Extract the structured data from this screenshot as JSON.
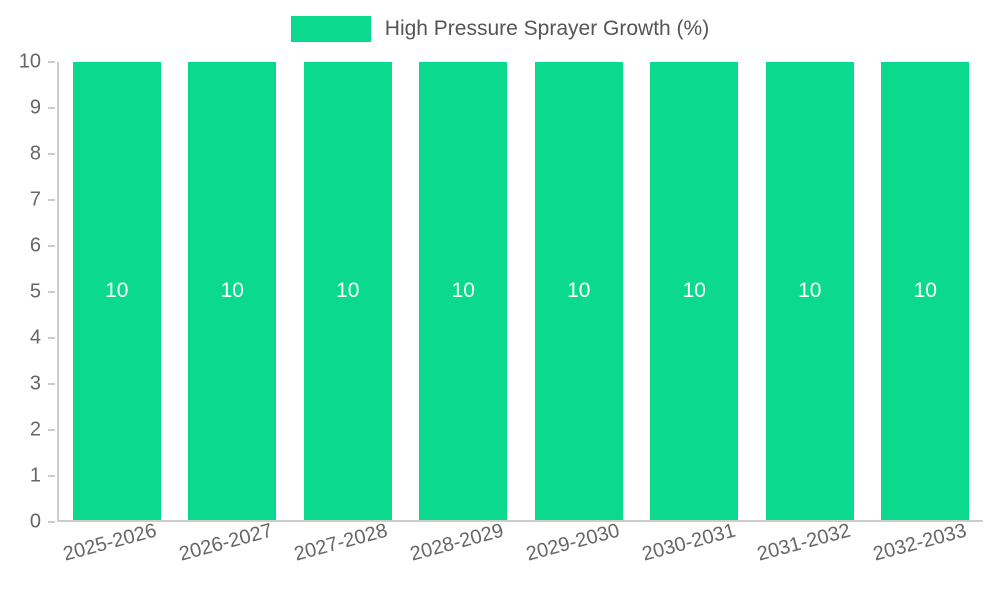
{
  "chart_data": {
    "type": "bar",
    "title": "",
    "legend_label": "High Pressure Sprayer Growth (%)",
    "categories": [
      "2025-2026",
      "2026-2027",
      "2027-2028",
      "2028-2029",
      "2029-2030",
      "2030-2031",
      "2031-2032",
      "2032-2033"
    ],
    "values": [
      10,
      10,
      10,
      10,
      10,
      10,
      10,
      10
    ],
    "bar_labels": [
      "10",
      "10",
      "10",
      "10",
      "10",
      "10",
      "10",
      "10"
    ],
    "xlabel": "",
    "ylabel": "",
    "ylim": [
      0,
      10
    ],
    "yticks": [
      0,
      1,
      2,
      3,
      4,
      5,
      6,
      7,
      8,
      9,
      10
    ],
    "grid": "off",
    "legend_position": "top-center",
    "colors": {
      "bar": "#0bda8e",
      "bar_label": "#ffffff",
      "axis_line": "#cccccc",
      "tick_text": "#666666",
      "legend_text": "#555555",
      "background": "#ffffff"
    }
  }
}
